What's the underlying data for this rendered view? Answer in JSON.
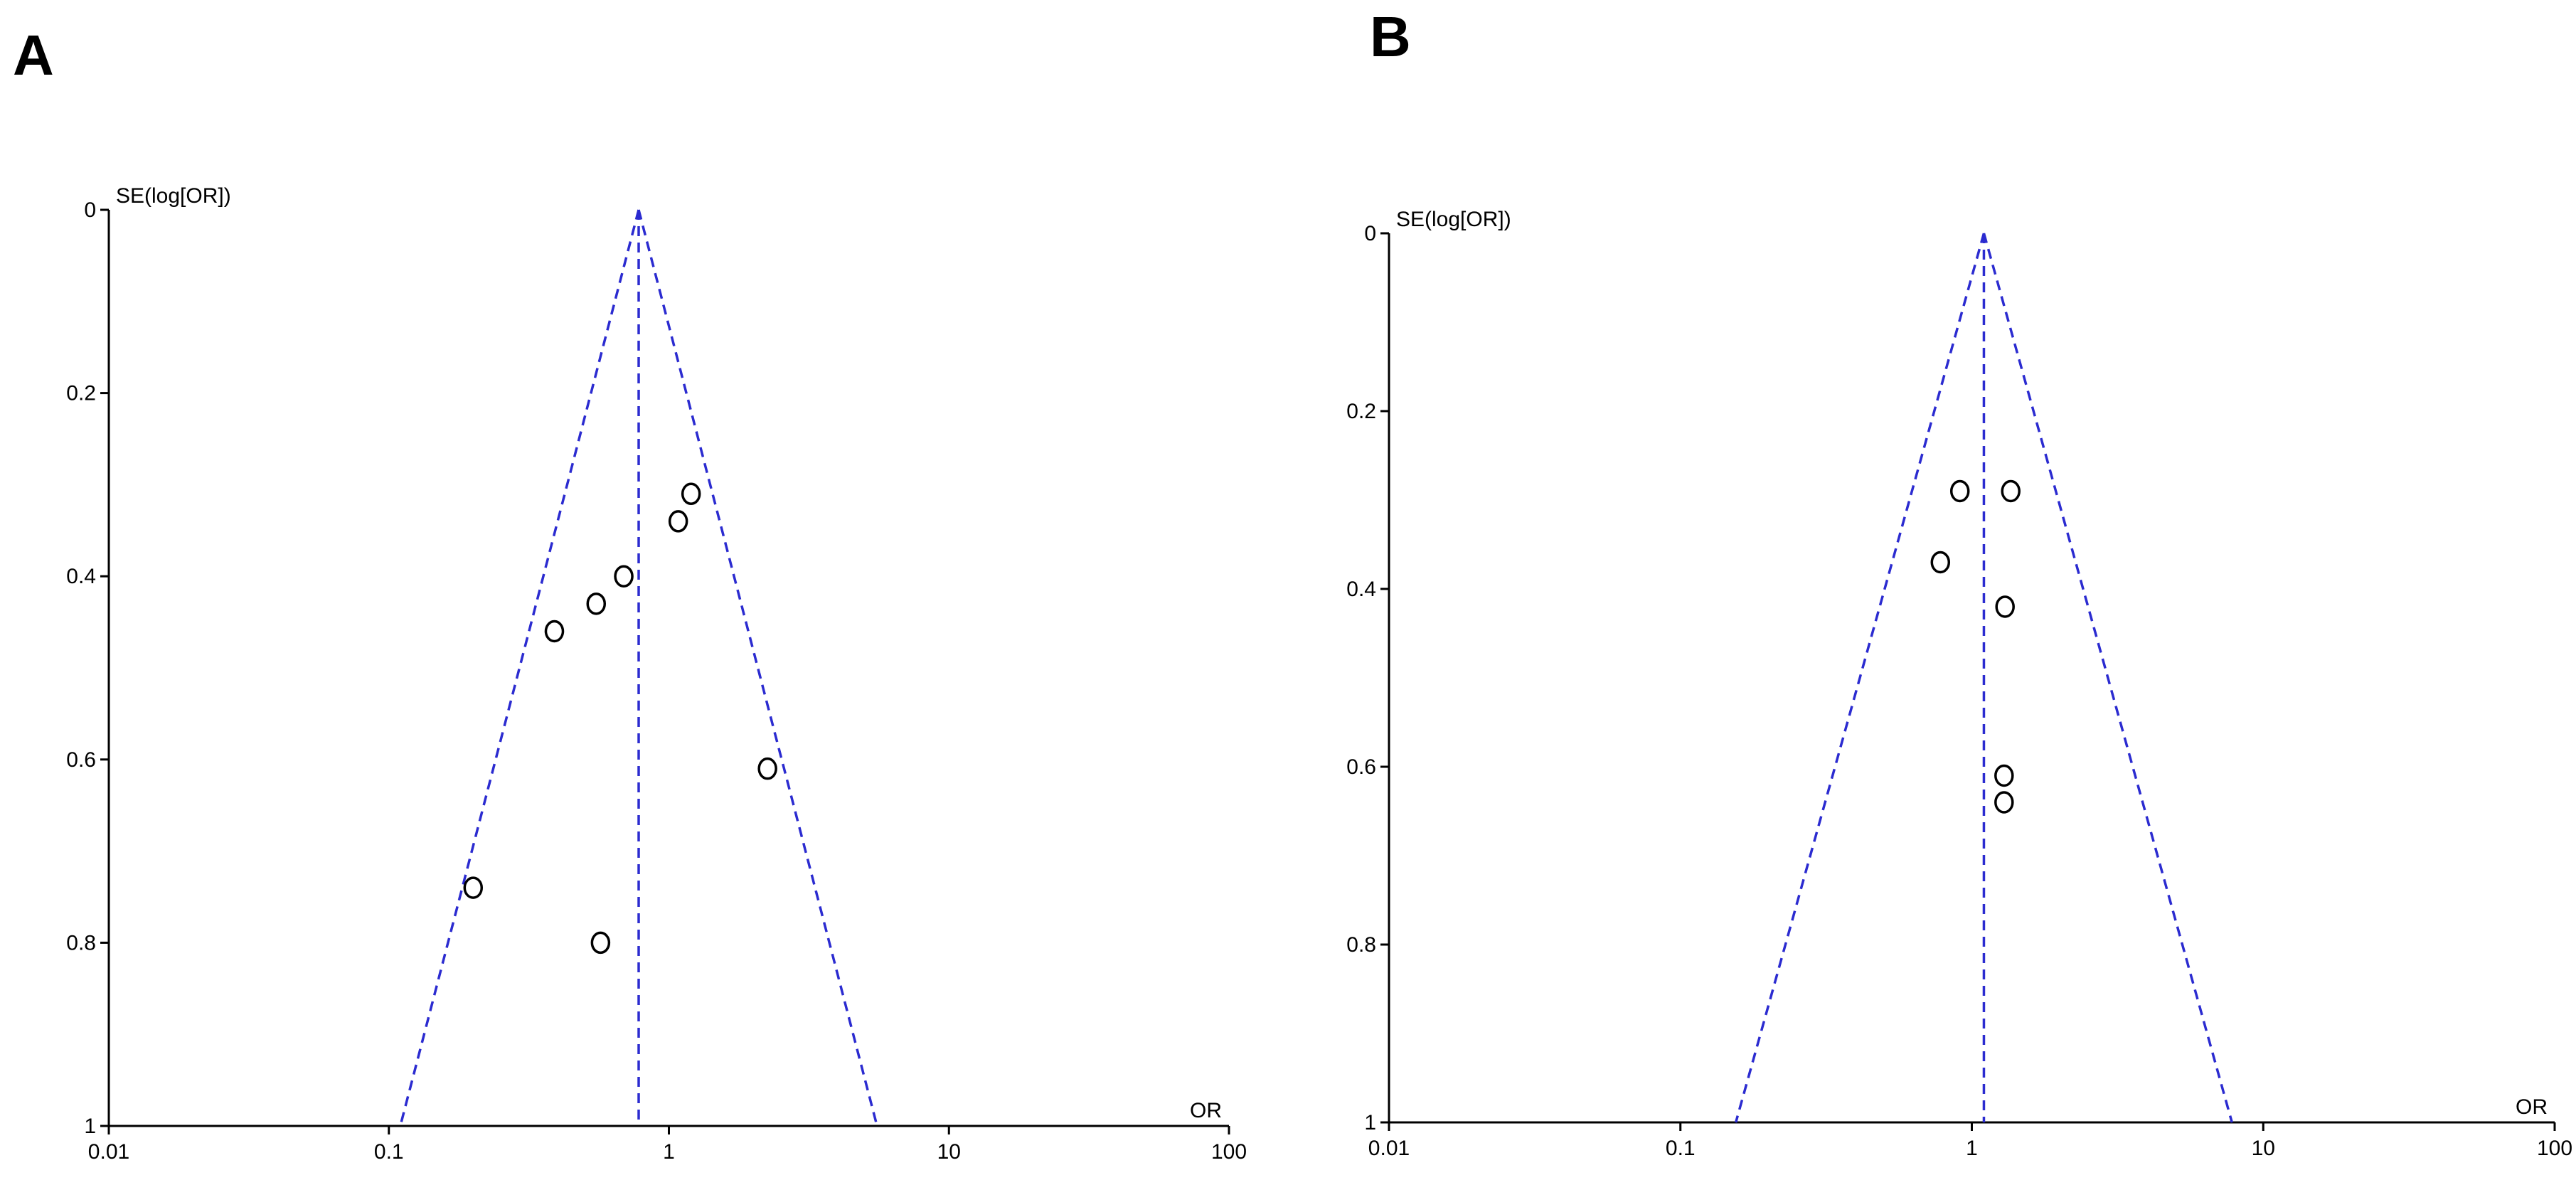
{
  "panels": [
    {
      "label": "A"
    },
    {
      "label": "B"
    }
  ],
  "chart_data": [
    {
      "type": "scatter",
      "subtype": "funnel-plot",
      "xlabel": "OR",
      "ylabel": "SE(log[OR])",
      "x_scale": "log",
      "xlim": [
        0.01,
        100
      ],
      "ylim": [
        0,
        1
      ],
      "y_reversed": true,
      "x_ticks": [
        "0.01",
        "0.1",
        "1",
        "10",
        "100"
      ],
      "y_ticks": [
        "0",
        "0.2",
        "0.4",
        "0.6",
        "0.8",
        "1"
      ],
      "pooled_or": 0.78,
      "points": [
        {
          "x": 1.2,
          "y": 0.31
        },
        {
          "x": 1.08,
          "y": 0.34
        },
        {
          "x": 0.69,
          "y": 0.4
        },
        {
          "x": 0.55,
          "y": 0.43
        },
        {
          "x": 0.39,
          "y": 0.46
        },
        {
          "x": 2.25,
          "y": 0.61
        },
        {
          "x": 0.2,
          "y": 0.74
        },
        {
          "x": 0.57,
          "y": 0.8
        }
      ],
      "line_color": "#2b2bd0",
      "marker": "open-circle"
    },
    {
      "type": "scatter",
      "subtype": "funnel-plot",
      "xlabel": "OR",
      "ylabel": "SE(log[OR])",
      "x_scale": "log",
      "xlim": [
        0.01,
        100
      ],
      "ylim": [
        0,
        1
      ],
      "y_reversed": true,
      "x_ticks": [
        "0.01",
        "0.1",
        "1",
        "10",
        "100"
      ],
      "y_ticks": [
        "0",
        "0.2",
        "0.4",
        "0.6",
        "0.8",
        "1"
      ],
      "pooled_or": 1.1,
      "points": [
        {
          "x": 0.91,
          "y": 0.29
        },
        {
          "x": 1.36,
          "y": 0.29
        },
        {
          "x": 0.78,
          "y": 0.37
        },
        {
          "x": 1.3,
          "y": 0.42
        },
        {
          "x": 1.29,
          "y": 0.61
        },
        {
          "x": 1.29,
          "y": 0.64
        }
      ],
      "line_color": "#2b2bd0",
      "marker": "open-circle"
    }
  ]
}
